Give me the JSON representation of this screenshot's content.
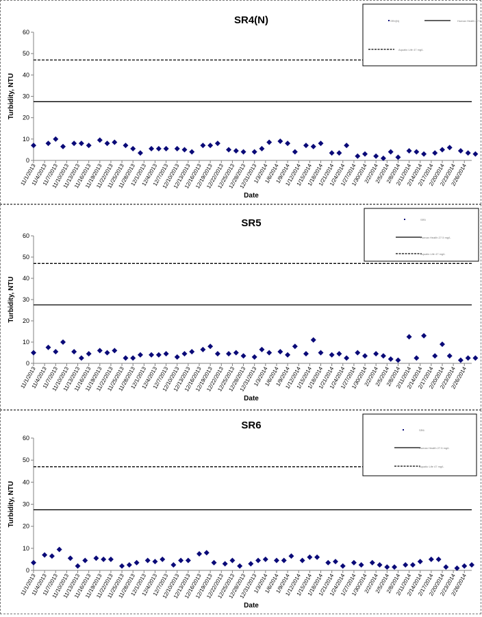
{
  "colors": {
    "marker": "#0a0a78",
    "line": "#000000",
    "axis": "#808080",
    "border": "#777777"
  },
  "chart_data": [
    {
      "type": "scatter",
      "title": "SR4(N)",
      "xlabel": "Date",
      "ylabel": "Turbidity, NTU",
      "ylim": [
        0,
        60
      ],
      "yticks": [
        "0",
        "10",
        "20",
        "30",
        "40",
        "50",
        "60"
      ],
      "grid": false,
      "legend_position": "top-right",
      "legend": [
        "SR4(N)",
        "Human Health 27.5 mg/L",
        "Aquatic Life 47 mg/L"
      ],
      "xticks": [
        "11/1/2013",
        "11/4/2013",
        "11/7/2013",
        "11/10/2013",
        "11/13/2013",
        "11/16/2013",
        "11/19/2013",
        "11/22/2013",
        "11/25/2013",
        "11/28/2013",
        "12/1/2013",
        "12/4/2013",
        "12/7/2013",
        "12/10/2013",
        "12/13/2013",
        "12/16/2013",
        "12/19/2013",
        "12/22/2013",
        "12/25/2013",
        "12/28/2013",
        "12/31/2013",
        "1/3/2014",
        "1/6/2014",
        "1/9/2014",
        "1/12/2014",
        "1/15/2014",
        "1/18/2014",
        "1/21/2014",
        "1/24/2014",
        "1/27/2014",
        "1/30/2014",
        "2/2/2014",
        "2/5/2014",
        "2/8/2014",
        "2/11/2014",
        "2/14/2014",
        "2/17/2014",
        "2/20/2014",
        "2/23/2014",
        "2/26/2014"
      ],
      "series": [
        {
          "name": "SR4(N)",
          "points": [
            [
              "11/1/2013",
              7
            ],
            [
              "11/5/2013",
              8
            ],
            [
              "11/7/2013",
              10
            ],
            [
              "11/9/2013",
              6.5
            ],
            [
              "11/12/2013",
              8
            ],
            [
              "11/14/2013",
              8
            ],
            [
              "11/16/2013",
              7
            ],
            [
              "11/19/2013",
              9.5
            ],
            [
              "11/21/2013",
              8
            ],
            [
              "11/23/2013",
              8.5
            ],
            [
              "11/26/2013",
              7
            ],
            [
              "11/28/2013",
              5.5
            ],
            [
              "11/30/2013",
              3.5
            ],
            [
              "12/3/2013",
              5.5
            ],
            [
              "12/5/2013",
              5.5
            ],
            [
              "12/7/2013",
              5.5
            ],
            [
              "12/10/2013",
              5.5
            ],
            [
              "12/12/2013",
              5
            ],
            [
              "12/14/2013",
              4
            ],
            [
              "12/17/2013",
              7
            ],
            [
              "12/19/2013",
              7
            ],
            [
              "12/21/2013",
              8
            ],
            [
              "12/24/2013",
              5
            ],
            [
              "12/26/2013",
              4.5
            ],
            [
              "12/28/2013",
              4
            ],
            [
              "12/31/2013",
              4
            ],
            [
              "1/2/2014",
              5.5
            ],
            [
              "1/4/2014",
              8.5
            ],
            [
              "1/7/2014",
              9
            ],
            [
              "1/9/2014",
              8
            ],
            [
              "1/11/2014",
              4
            ],
            [
              "1/14/2014",
              7
            ],
            [
              "1/16/2014",
              6.5
            ],
            [
              "1/18/2014",
              8
            ],
            [
              "1/21/2014",
              3.5
            ],
            [
              "1/23/2014",
              3.5
            ],
            [
              "1/25/2014",
              7
            ],
            [
              "1/28/2014",
              2
            ],
            [
              "1/30/2014",
              3
            ],
            [
              "2/2/2014",
              2
            ],
            [
              "2/4/2014",
              1
            ],
            [
              "2/6/2014",
              4
            ],
            [
              "2/8/2014",
              1.5
            ],
            [
              "2/11/2014",
              4.5
            ],
            [
              "2/13/2014",
              4
            ],
            [
              "2/15/2014",
              3
            ],
            [
              "2/18/2014",
              3.5
            ],
            [
              "2/20/2014",
              5
            ],
            [
              "2/22/2014",
              6
            ],
            [
              "2/25/2014",
              4.5
            ],
            [
              "2/27/2014",
              3.5
            ],
            [
              "3/1/2014",
              3
            ]
          ]
        },
        {
          "name": "Human Health 27.5 mg/L",
          "y": 27.5,
          "style": "solid"
        },
        {
          "name": "Aquatic Life 47 mg/L",
          "y": 47,
          "style": "dashed"
        }
      ]
    },
    {
      "type": "scatter",
      "title": "SR5",
      "xlabel": "Date",
      "ylabel": "Turbidity, NTU",
      "ylim": [
        0,
        60
      ],
      "yticks": [
        "0",
        "10",
        "20",
        "30",
        "40",
        "50",
        "60"
      ],
      "grid": false,
      "legend_position": "top-right",
      "legend": [
        "SR5",
        "Human Health 27.5 mg/L",
        "Aquatic Life 47 mg/L"
      ],
      "xticks": [
        "11/1/2013",
        "11/4/2013",
        "11/7/2013",
        "11/10/2013",
        "11/13/2013",
        "11/16/2013",
        "11/19/2013",
        "11/22/2013",
        "11/25/2013",
        "11/28/2013",
        "12/1/2013",
        "12/4/2013",
        "12/7/2013",
        "12/10/2013",
        "12/13/2013",
        "12/16/2013",
        "12/19/2013",
        "12/22/2013",
        "12/25/2013",
        "12/28/2013",
        "12/31/2013",
        "1/3/2014",
        "1/6/2014",
        "1/9/2014",
        "1/12/2014",
        "1/15/2014",
        "1/18/2014",
        "1/21/2014",
        "1/24/2014",
        "1/27/2014",
        "1/30/2014",
        "2/2/2014",
        "2/5/2014",
        "2/8/2014",
        "2/11/2014",
        "2/14/2014",
        "2/17/2014",
        "2/20/2014",
        "2/23/2014",
        "2/26/2014"
      ],
      "series": [
        {
          "name": "SR5",
          "points": [
            [
              "11/1/2013",
              5
            ],
            [
              "11/5/2013",
              7.5
            ],
            [
              "11/7/2013",
              5.5
            ],
            [
              "11/9/2013",
              10
            ],
            [
              "11/12/2013",
              5.5
            ],
            [
              "11/14/2013",
              2.5
            ],
            [
              "11/16/2013",
              4.5
            ],
            [
              "11/19/2013",
              6
            ],
            [
              "11/21/2013",
              5
            ],
            [
              "11/23/2013",
              6
            ],
            [
              "11/26/2013",
              2.5
            ],
            [
              "11/28/2013",
              2.5
            ],
            [
              "11/30/2013",
              4
            ],
            [
              "12/3/2013",
              4
            ],
            [
              "12/5/2013",
              4
            ],
            [
              "12/7/2013",
              4.5
            ],
            [
              "12/10/2013",
              3
            ],
            [
              "12/12/2013",
              4.5
            ],
            [
              "12/14/2013",
              5.5
            ],
            [
              "12/17/2013",
              6.5
            ],
            [
              "12/19/2013",
              8
            ],
            [
              "12/21/2013",
              4.5
            ],
            [
              "12/24/2013",
              4.5
            ],
            [
              "12/26/2013",
              5
            ],
            [
              "12/28/2013",
              3.5
            ],
            [
              "12/31/2013",
              3
            ],
            [
              "1/2/2014",
              6.5
            ],
            [
              "1/4/2014",
              5
            ],
            [
              "1/7/2014",
              5.5
            ],
            [
              "1/9/2014",
              4
            ],
            [
              "1/11/2014",
              8
            ],
            [
              "1/14/2014",
              4.5
            ],
            [
              "1/16/2014",
              11
            ],
            [
              "1/18/2014",
              5
            ],
            [
              "1/21/2014",
              4
            ],
            [
              "1/23/2014",
              4.5
            ],
            [
              "1/25/2014",
              2.5
            ],
            [
              "1/28/2014",
              5
            ],
            [
              "1/30/2014",
              3.5
            ],
            [
              "2/2/2014",
              4.5
            ],
            [
              "2/4/2014",
              3.5
            ],
            [
              "2/6/2014",
              2
            ],
            [
              "2/8/2014",
              1.5
            ],
            [
              "2/11/2014",
              12.5
            ],
            [
              "2/13/2014",
              2.5
            ],
            [
              "2/15/2014",
              13
            ],
            [
              "2/18/2014",
              3.5
            ],
            [
              "2/20/2014",
              9
            ],
            [
              "2/22/2014",
              3.5
            ],
            [
              "2/25/2014",
              1.5
            ],
            [
              "2/27/2014",
              2.5
            ],
            [
              "3/1/2014",
              2.5
            ]
          ]
        },
        {
          "name": "Human Health 27.5 mg/L",
          "y": 27.5,
          "style": "solid"
        },
        {
          "name": "Aquatic Life 47 mg/L",
          "y": 47,
          "style": "dashed"
        }
      ]
    },
    {
      "type": "scatter",
      "title": "SR6",
      "xlabel": "Date",
      "ylabel": "Turbidity, NTU",
      "ylim": [
        0,
        60
      ],
      "yticks": [
        "0",
        "10",
        "20",
        "30",
        "40",
        "50",
        "60"
      ],
      "grid": false,
      "legend_position": "top-right",
      "legend": [
        "SR6",
        "Human Health 27.5 mg/L",
        "Aquatic Life 47 mg/L"
      ],
      "xticks": [
        "11/1/2013",
        "11/4/2013",
        "11/7/2013",
        "11/10/2013",
        "11/13/2013",
        "11/16/2013",
        "11/19/2013",
        "11/22/2013",
        "11/25/2013",
        "11/28/2013",
        "12/1/2013",
        "12/4/2013",
        "12/7/2013",
        "12/10/2013",
        "12/13/2013",
        "12/16/2013",
        "12/19/2013",
        "12/22/2013",
        "12/25/2013",
        "12/28/2013",
        "12/31/2013",
        "1/3/2014",
        "1/6/2014",
        "1/9/2014",
        "1/12/2014",
        "1/15/2014",
        "1/18/2014",
        "1/21/2014",
        "1/24/2014",
        "1/27/2014",
        "1/30/2014",
        "2/2/2014",
        "2/5/2014",
        "2/8/2014",
        "2/11/2014",
        "2/14/2014",
        "2/17/2014",
        "2/20/2014",
        "2/23/2014",
        "2/26/2014"
      ],
      "series": [
        {
          "name": "SR6",
          "points": [
            [
              "11/1/2013",
              3.5
            ],
            [
              "11/4/2013",
              7
            ],
            [
              "11/6/2013",
              6.5
            ],
            [
              "11/8/2013",
              9.5
            ],
            [
              "11/11/2013",
              5.5
            ],
            [
              "11/13/2013",
              2
            ],
            [
              "11/15/2013",
              4.5
            ],
            [
              "11/18/2013",
              5.5
            ],
            [
              "11/20/2013",
              5
            ],
            [
              "11/22/2013",
              5
            ],
            [
              "11/25/2013",
              2
            ],
            [
              "11/27/2013",
              2.5
            ],
            [
              "11/29/2013",
              3.5
            ],
            [
              "12/2/2013",
              4.5
            ],
            [
              "12/4/2013",
              4
            ],
            [
              "12/6/2013",
              5
            ],
            [
              "12/9/2013",
              2.5
            ],
            [
              "12/11/2013",
              4.5
            ],
            [
              "12/13/2013",
              4.5
            ],
            [
              "12/16/2013",
              7.5
            ],
            [
              "12/18/2013",
              8
            ],
            [
              "12/20/2013",
              3.5
            ],
            [
              "12/23/2013",
              3
            ],
            [
              "12/25/2013",
              4.5
            ],
            [
              "12/27/2013",
              2
            ],
            [
              "12/30/2013",
              3
            ],
            [
              "1/1/2014",
              4.5
            ],
            [
              "1/3/2014",
              5
            ],
            [
              "1/6/2014",
              4.5
            ],
            [
              "1/8/2014",
              4.5
            ],
            [
              "1/10/2014",
              6.5
            ],
            [
              "1/13/2014",
              4.5
            ],
            [
              "1/15/2014",
              6
            ],
            [
              "1/17/2014",
              6
            ],
            [
              "1/20/2014",
              3.5
            ],
            [
              "1/22/2014",
              4
            ],
            [
              "1/24/2014",
              2
            ],
            [
              "1/27/2014",
              3.5
            ],
            [
              "1/29/2014",
              2.5
            ],
            [
              "2/1/2014",
              3.5
            ],
            [
              "2/3/2014",
              2.5
            ],
            [
              "2/5/2014",
              1.5
            ],
            [
              "2/7/2014",
              1.5
            ],
            [
              "2/10/2014",
              2.5
            ],
            [
              "2/12/2014",
              2.5
            ],
            [
              "2/14/2014",
              4
            ],
            [
              "2/17/2014",
              5
            ],
            [
              "2/19/2014",
              5
            ],
            [
              "2/21/2014",
              1.5
            ],
            [
              "2/24/2014",
              1
            ],
            [
              "2/26/2014",
              2
            ],
            [
              "2/28/2014",
              2.5
            ]
          ]
        },
        {
          "name": "Human Health 27.5 mg/L",
          "y": 27.5,
          "style": "solid"
        },
        {
          "name": "Aquatic Life 47 mg/L",
          "y": 47,
          "style": "dashed"
        }
      ]
    }
  ]
}
